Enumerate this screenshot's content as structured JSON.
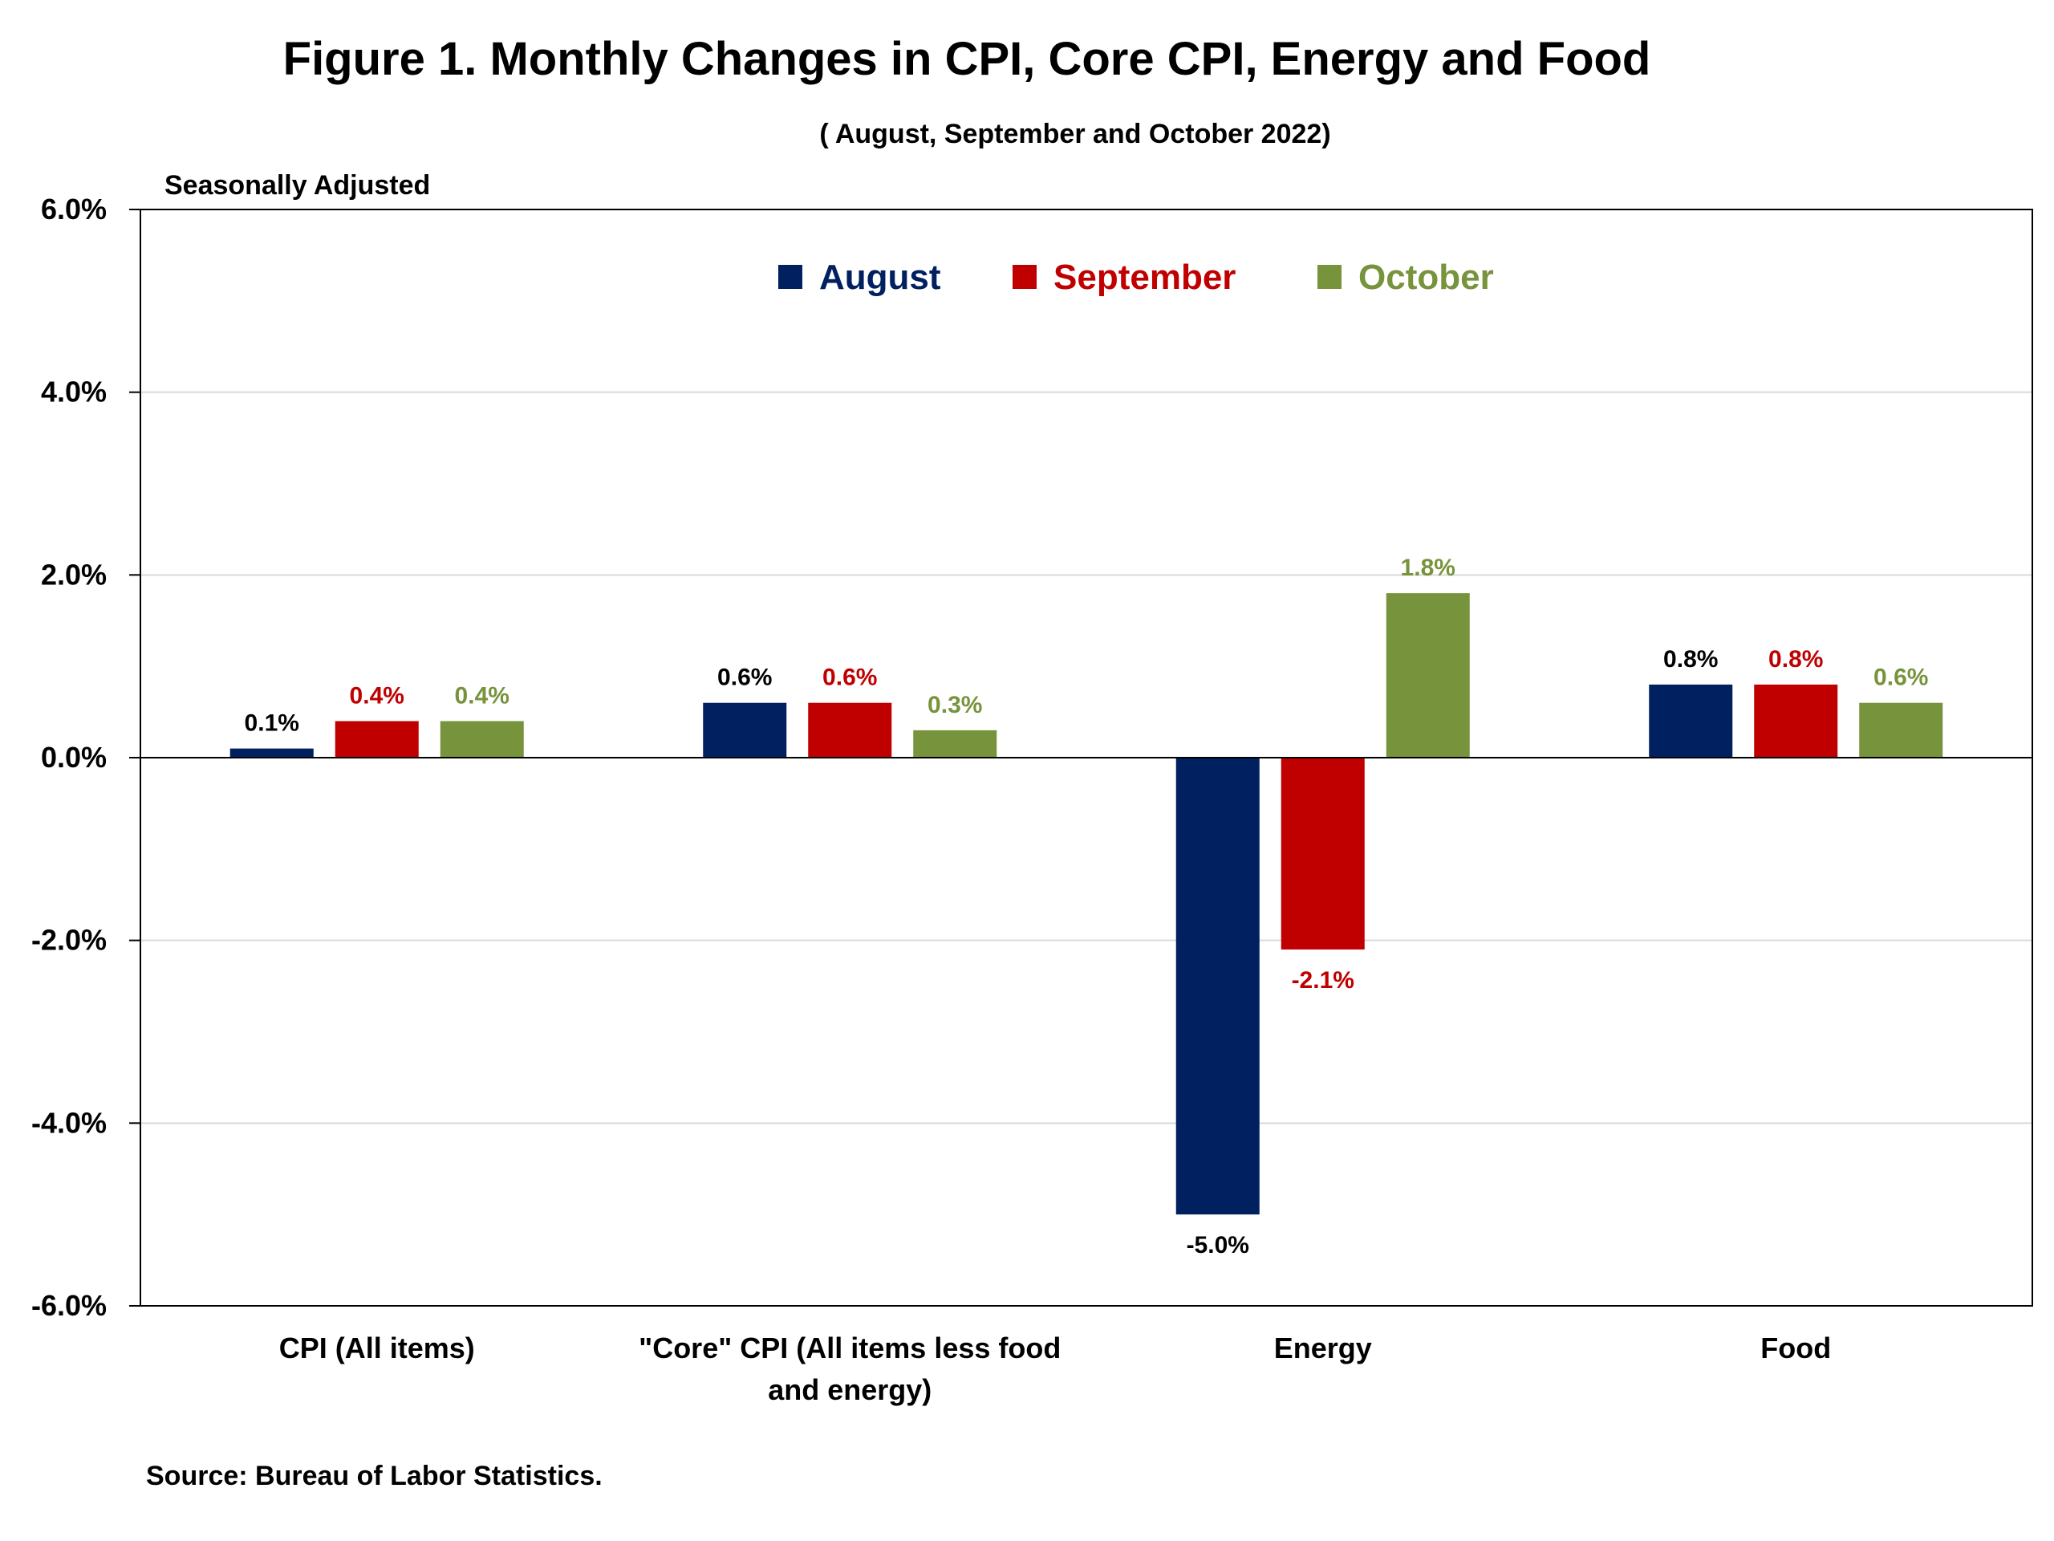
{
  "chart_data": {
    "type": "bar",
    "title": "Figure 1. Monthly Changes in CPI, Core CPI, Energy and Food",
    "subtitle": "( August, September and October 2022)",
    "note": "Seasonally Adjusted",
    "source": "Source: Bureau of Labor Statistics.",
    "categories": [
      [
        "CPI (All items)"
      ],
      [
        "\"Core\" CPI (All items less food",
        "and energy)"
      ],
      [
        "Energy"
      ],
      [
        "Food"
      ]
    ],
    "series": [
      {
        "name": "August",
        "color": "#002060",
        "values": [
          0.1,
          0.6,
          -5.0,
          0.8
        ],
        "labels": [
          "0.1%",
          "0.6%",
          "-5.0%",
          "0.8%"
        ],
        "label_color": "#000000"
      },
      {
        "name": "September",
        "color": "#C00000",
        "values": [
          0.4,
          0.6,
          -2.1,
          0.8
        ],
        "labels": [
          "0.4%",
          "0.6%",
          "-2.1%",
          "0.8%"
        ],
        "label_color": "#C00000"
      },
      {
        "name": "October",
        "color": "#77933C",
        "values": [
          0.4,
          0.3,
          1.8,
          0.6
        ],
        "labels": [
          "0.4%",
          "0.3%",
          "1.8%",
          "0.6%"
        ],
        "label_color": "#77933C"
      }
    ],
    "ylim": [
      -6.0,
      6.0
    ],
    "yticks": [
      6.0,
      4.0,
      2.0,
      0.0,
      -2.0,
      -4.0,
      -6.0
    ],
    "ytick_labels": [
      "6.0%",
      "4.0%",
      "2.0%",
      "0.0%",
      "-2.0%",
      "-4.0%",
      "-6.0%"
    ],
    "grid": true,
    "legend_position": "top-center"
  }
}
